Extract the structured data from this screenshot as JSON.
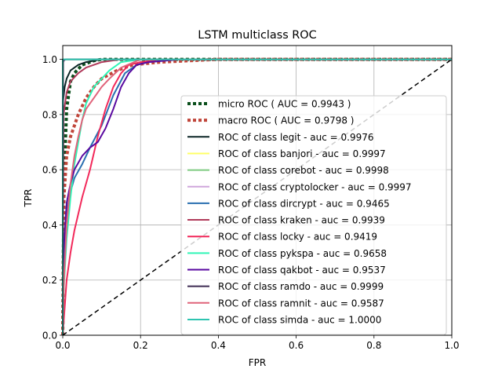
{
  "chart_data": {
    "type": "line",
    "title": "LSTM multiclass ROC",
    "xlabel": "FPR",
    "ylabel": "TPR",
    "xlim": [
      0,
      1
    ],
    "ylim": [
      0,
      1.05
    ],
    "xticks": [
      0.0,
      0.2,
      0.4,
      0.6,
      0.8,
      1.0
    ],
    "xtick_labels": [
      "0.0",
      "0.2",
      "0.4",
      "0.6",
      "0.8",
      "1.0"
    ],
    "yticks": [
      0.0,
      0.2,
      0.4,
      0.6,
      0.8,
      1.0
    ],
    "ytick_labels": [
      "0.0",
      "0.2",
      "0.4",
      "0.6",
      "0.8",
      "1.0"
    ],
    "grid": true,
    "legend_position": "lower-right",
    "series": [
      {
        "name": "micro ROC ( AUC = 0.9943 )",
        "color": "#0b4f1c",
        "style": "dotted",
        "width": 4,
        "x": [
          0,
          0.003,
          0.01,
          0.02,
          0.03,
          0.05,
          0.08,
          0.1,
          0.15,
          1
        ],
        "y": [
          0,
          0.55,
          0.82,
          0.92,
          0.95,
          0.98,
          0.995,
          1.0,
          1.0,
          1.0
        ]
      },
      {
        "name": "macro ROC ( AUC = 0.9798 )",
        "color": "#c0453a",
        "style": "dotted",
        "width": 4,
        "x": [
          0,
          0.003,
          0.01,
          0.02,
          0.04,
          0.06,
          0.08,
          0.1,
          0.14,
          0.18,
          0.25,
          0.4,
          1
        ],
        "y": [
          0,
          0.5,
          0.65,
          0.72,
          0.8,
          0.86,
          0.9,
          0.93,
          0.96,
          0.98,
          0.99,
          1.0,
          1.0
        ]
      },
      {
        "name": "ROC of class legit - auc = 0.9976",
        "color": "#0b2526",
        "style": "solid",
        "width": 2,
        "x": [
          0,
          0.001,
          0.005,
          0.01,
          0.02,
          0.04,
          0.06,
          0.1,
          1
        ],
        "y": [
          0,
          0.85,
          0.9,
          0.93,
          0.96,
          0.98,
          0.99,
          1.0,
          1.0
        ]
      },
      {
        "name": "ROC of class banjori - auc = 0.9997",
        "color": "#ffff66",
        "style": "solid",
        "width": 2,
        "x": [
          0,
          0.001,
          0.005,
          0.01,
          1
        ],
        "y": [
          0,
          0.99,
          0.998,
          1.0,
          1.0
        ]
      },
      {
        "name": "ROC of class corebot - auc = 0.9998",
        "color": "#7fcb82",
        "style": "solid",
        "width": 2,
        "x": [
          0,
          0.001,
          0.005,
          0.01,
          1
        ],
        "y": [
          0,
          0.99,
          0.998,
          1.0,
          1.0
        ]
      },
      {
        "name": "ROC of class cryptolocker - auc = 0.9997",
        "color": "#cfa6dc",
        "style": "solid",
        "width": 2,
        "x": [
          0,
          0.001,
          0.005,
          0.01,
          1
        ],
        "y": [
          0,
          0.99,
          0.998,
          1.0,
          1.0
        ]
      },
      {
        "name": "ROC of class dircrypt - auc = 0.9465",
        "color": "#2a6fb0",
        "style": "solid",
        "width": 2,
        "x": [
          0,
          0.003,
          0.01,
          0.02,
          0.03,
          0.05,
          0.07,
          0.1,
          0.13,
          0.16,
          0.19,
          0.22,
          0.3,
          1
        ],
        "y": [
          0,
          0.3,
          0.45,
          0.52,
          0.57,
          0.62,
          0.68,
          0.76,
          0.87,
          0.95,
          0.98,
          0.99,
          1.0,
          1.0
        ]
      },
      {
        "name": "ROC of class kraken - auc = 0.9939",
        "color": "#b03a5a",
        "style": "solid",
        "width": 2,
        "x": [
          0,
          0.002,
          0.01,
          0.02,
          0.04,
          0.06,
          0.1,
          0.15,
          1
        ],
        "y": [
          0,
          0.8,
          0.88,
          0.92,
          0.95,
          0.97,
          0.99,
          1.0,
          1.0
        ]
      },
      {
        "name": "ROC of class locky - auc = 0.9419",
        "color": "#f2295a",
        "style": "solid",
        "width": 2,
        "x": [
          0,
          0.005,
          0.01,
          0.02,
          0.03,
          0.05,
          0.07,
          0.09,
          0.11,
          0.13,
          0.15,
          0.17,
          0.2,
          0.25,
          1
        ],
        "y": [
          0,
          0.1,
          0.2,
          0.3,
          0.38,
          0.5,
          0.6,
          0.72,
          0.82,
          0.9,
          0.95,
          0.98,
          0.99,
          1.0,
          1.0
        ]
      },
      {
        "name": "ROC of class pykspa - auc = 0.9658",
        "color": "#2ef5b6",
        "style": "solid",
        "width": 2,
        "x": [
          0,
          0.003,
          0.01,
          0.02,
          0.03,
          0.04,
          0.05,
          0.06,
          0.08,
          0.1,
          0.12,
          0.15,
          0.2,
          1
        ],
        "y": [
          0,
          0.18,
          0.35,
          0.5,
          0.62,
          0.7,
          0.78,
          0.84,
          0.9,
          0.93,
          0.96,
          0.99,
          1.0,
          1.0
        ]
      },
      {
        "name": "ROC of class qakbot - auc = 0.9537",
        "color": "#5a0aa0",
        "style": "solid",
        "width": 2,
        "x": [
          0,
          0.002,
          0.01,
          0.02,
          0.03,
          0.05,
          0.07,
          0.09,
          0.11,
          0.13,
          0.15,
          0.17,
          0.19,
          0.22,
          0.3,
          1
        ],
        "y": [
          0,
          0.3,
          0.48,
          0.55,
          0.6,
          0.65,
          0.68,
          0.7,
          0.75,
          0.82,
          0.9,
          0.95,
          0.98,
          0.99,
          1.0,
          1.0
        ]
      },
      {
        "name": "ROC of class ramdo - auc = 0.9999",
        "color": "#3c2a52",
        "style": "solid",
        "width": 2,
        "x": [
          0,
          0.001,
          0.005,
          0.01,
          1
        ],
        "y": [
          0,
          0.995,
          0.999,
          1.0,
          1.0
        ]
      },
      {
        "name": "ROC of class ramnit - auc = 0.9587",
        "color": "#e0637a",
        "style": "solid",
        "width": 2,
        "x": [
          0,
          0.003,
          0.01,
          0.02,
          0.03,
          0.04,
          0.05,
          0.06,
          0.08,
          0.1,
          0.12,
          0.15,
          0.2,
          1
        ],
        "y": [
          0,
          0.2,
          0.4,
          0.55,
          0.65,
          0.72,
          0.78,
          0.82,
          0.86,
          0.9,
          0.93,
          0.97,
          1.0,
          1.0
        ]
      },
      {
        "name": "ROC of class simda - auc = 1.0000",
        "color": "#2ec4b0",
        "style": "solid",
        "width": 2,
        "x": [
          0,
          0.0,
          1
        ],
        "y": [
          0,
          1.0,
          1.0
        ]
      },
      {
        "name": "",
        "color": "#000000",
        "style": "dashed",
        "width": 1.5,
        "x": [
          0,
          1
        ],
        "y": [
          0,
          1
        ]
      }
    ]
  }
}
